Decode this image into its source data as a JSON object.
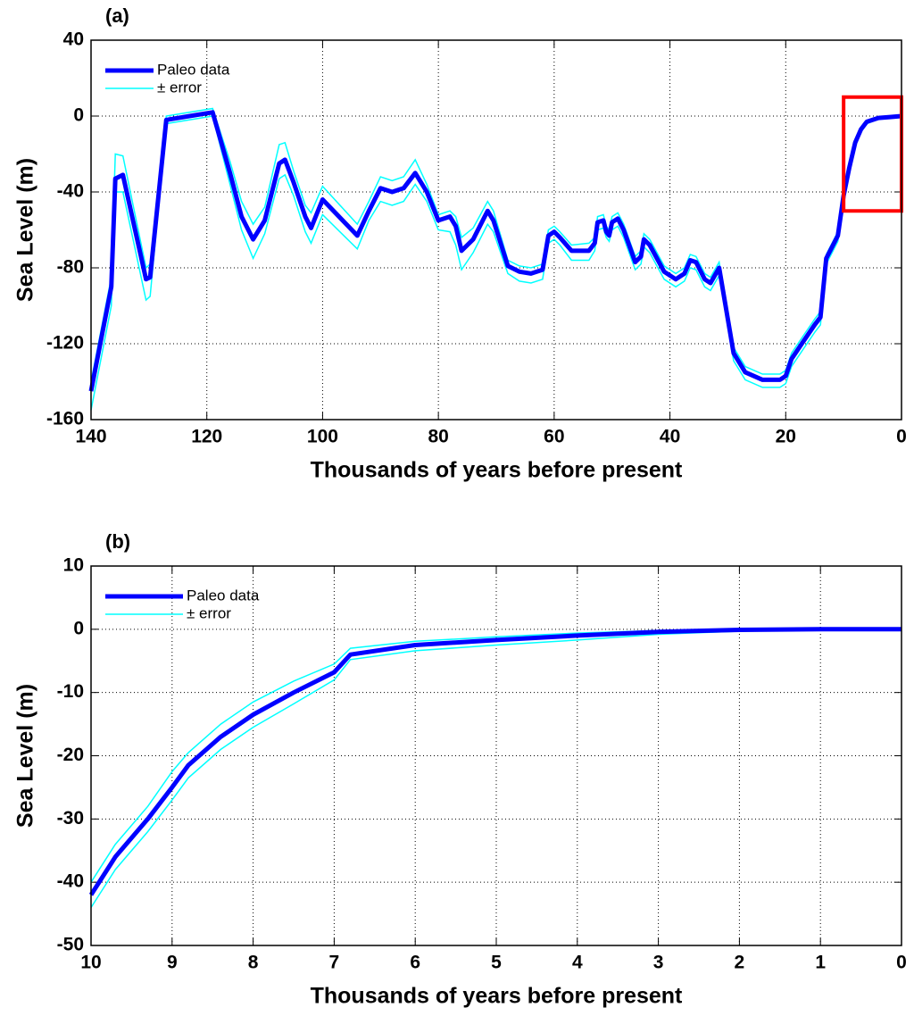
{
  "chart_data": [
    {
      "type": "line",
      "title": "(a)",
      "x_label": "Thousands of years before present",
      "y_label": "Sea Level (m)",
      "xlim": [
        140,
        0
      ],
      "ylim": [
        -160,
        40
      ],
      "xticks": [
        140,
        120,
        100,
        80,
        60,
        40,
        20,
        0
      ],
      "yticks": [
        -160,
        -120,
        -80,
        -40,
        0,
        40
      ],
      "grid": true,
      "legend": "upper left",
      "x": [
        140,
        136.5,
        135.8,
        134.5,
        130.5,
        129.8,
        127,
        119,
        116,
        114,
        112,
        110,
        107.5,
        106.5,
        105,
        103,
        102,
        100,
        94,
        92,
        90,
        88,
        86,
        84,
        82,
        80,
        78,
        77,
        76,
        74,
        71.5,
        70.5,
        68,
        66,
        64,
        62,
        61,
        60,
        59,
        57,
        54,
        53,
        52.5,
        51.5,
        51,
        50.5,
        50,
        49,
        48,
        46,
        45,
        44.5,
        43.5,
        41,
        39,
        37.5,
        36.5,
        35.5,
        34,
        33,
        31.5,
        29,
        27,
        24,
        21,
        20,
        19,
        17,
        15,
        14,
        13,
        11,
        10,
        9,
        8,
        7,
        6,
        4,
        2,
        0
      ],
      "series": [
        {
          "name": "Paleo data",
          "color": "#0000ff",
          "values": [
            -145,
            -90,
            -33,
            -31,
            -86,
            -85,
            -2,
            2,
            -30,
            -53,
            -65,
            -55,
            -25,
            -23,
            -35,
            -53,
            -59,
            -44,
            -63,
            -50,
            -38,
            -40,
            -38,
            -30,
            -40,
            -55,
            -53,
            -58,
            -71,
            -65,
            -50,
            -55,
            -79,
            -82,
            -83,
            -81,
            -63,
            -61,
            -64,
            -71,
            -71,
            -67,
            -56,
            -55,
            -61,
            -63,
            -56,
            -54,
            -60,
            -77,
            -74,
            -65,
            -68,
            -82,
            -86,
            -83,
            -76,
            -77,
            -86,
            -88,
            -80,
            -125,
            -135,
            -139,
            -139,
            -137,
            -128,
            -119,
            -110,
            -106,
            -75,
            -63,
            -42,
            -27,
            -14,
            -7,
            -3,
            -1,
            -0.5,
            0
          ]
        },
        {
          "name": "± error",
          "color": "#00ffff",
          "upper": [
            -140,
            -85,
            -20,
            -21,
            -80,
            -78,
            0,
            4,
            -24,
            -45,
            -57,
            -48,
            -15,
            -14,
            -29,
            -47,
            -51,
            -37,
            -57,
            -45,
            -32,
            -34,
            -32,
            -23,
            -36,
            -52,
            -50,
            -53,
            -64,
            -59,
            -45,
            -50,
            -76,
            -79,
            -80,
            -78,
            -60,
            -58,
            -61,
            -68,
            -67,
            -64,
            -53,
            -52,
            -58,
            -60,
            -53,
            -51,
            -57,
            -74,
            -71,
            -62,
            -65,
            -79,
            -83,
            -80,
            -73,
            -74,
            -83,
            -85,
            -77,
            -122,
            -132,
            -136,
            -136,
            -134,
            -125,
            -116,
            -107,
            -103,
            -73,
            -61,
            -40,
            -25,
            -13,
            -6,
            -2.5,
            -0.8,
            -0.3,
            0.2
          ],
          "lower": [
            -155,
            -100,
            -40,
            -40,
            -97,
            -95,
            -4,
            0,
            -36,
            -60,
            -75,
            -62,
            -33,
            -31,
            -42,
            -61,
            -67,
            -52,
            -70,
            -55,
            -45,
            -47,
            -45,
            -36,
            -45,
            -60,
            -61,
            -68,
            -81,
            -72,
            -57,
            -61,
            -83,
            -87,
            -88,
            -86,
            -67,
            -65,
            -68,
            -76,
            -76,
            -71,
            -60,
            -59,
            -64,
            -66,
            -60,
            -58,
            -64,
            -81,
            -78,
            -69,
            -72,
            -86,
            -90,
            -87,
            -80,
            -81,
            -90,
            -92,
            -84,
            -129,
            -139,
            -143,
            -143,
            -141,
            -132,
            -123,
            -114,
            -110,
            -78,
            -66,
            -45,
            -30,
            -16,
            -8.5,
            -4,
            -1.6,
            -0.8,
            -0.2
          ]
        }
      ],
      "highlight": {
        "color": "#ff0000",
        "xlim": [
          10,
          0
        ],
        "ylim": [
          -50,
          10
        ]
      }
    },
    {
      "type": "line",
      "title": "(b)",
      "x_label": "Thousands of years before present",
      "y_label": "Sea Level (m)",
      "xlim": [
        10,
        0
      ],
      "ylim": [
        -50,
        10
      ],
      "xticks": [
        10,
        9,
        8,
        7,
        6,
        5,
        4,
        3,
        2,
        1,
        0
      ],
      "yticks": [
        -50,
        -40,
        -30,
        -20,
        -10,
        0,
        10
      ],
      "grid": true,
      "legend": "upper left",
      "x": [
        10,
        9.7,
        9.3,
        9,
        8.8,
        8.4,
        8,
        7.5,
        7,
        6.8,
        6,
        5,
        4,
        3,
        2,
        1,
        0
      ],
      "series": [
        {
          "name": "Paleo data",
          "color": "#0000ff",
          "values": [
            -42,
            -36,
            -30,
            -25,
            -21.5,
            -17,
            -13.5,
            -10,
            -6.8,
            -4,
            -2.5,
            -1.7,
            -1,
            -0.4,
            -0.1,
            0,
            0
          ]
        },
        {
          "name": "± error",
          "color": "#00ffff",
          "upper": [
            -40,
            -34,
            -28,
            -22.5,
            -19.5,
            -15,
            -11.5,
            -8.2,
            -5.5,
            -3,
            -1.9,
            -1.2,
            -0.6,
            -0.2,
            0,
            0.1,
            0.1
          ],
          "lower": [
            -44,
            -38,
            -32,
            -27,
            -23.5,
            -19,
            -15.5,
            -11.8,
            -8,
            -4.8,
            -3.4,
            -2.5,
            -1.7,
            -0.8,
            -0.3,
            -0.1,
            -0.1
          ]
        }
      ]
    }
  ]
}
